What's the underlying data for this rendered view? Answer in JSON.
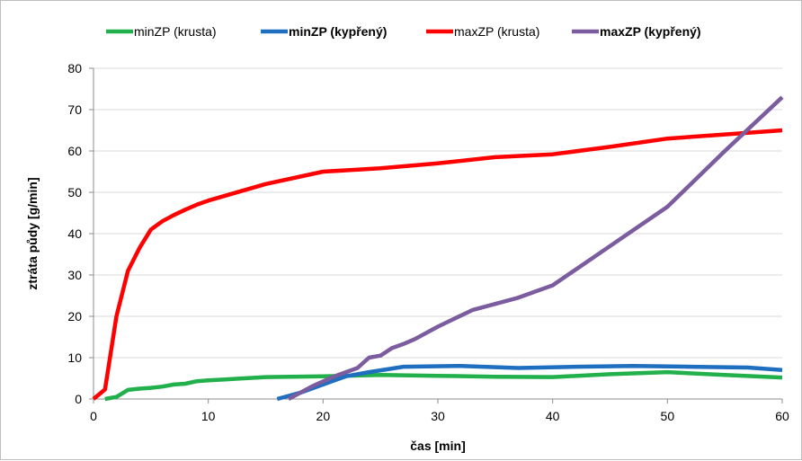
{
  "chart_data": {
    "type": "line",
    "xlabel": "čas [min]",
    "ylabel": "ztráta půdy [g/min]",
    "xlim": [
      0,
      60
    ],
    "ylim": [
      0,
      80
    ],
    "xticks": [
      0,
      10,
      20,
      30,
      40,
      50,
      60
    ],
    "yticks": [
      0,
      10,
      20,
      30,
      40,
      50,
      60,
      70,
      80
    ],
    "grid": "horizontal",
    "legend": "top",
    "series": [
      {
        "name": "minZP (krusta)",
        "color": "#21b04b",
        "bold": false,
        "x": [
          1,
          2,
          3,
          4,
          5,
          6,
          7,
          8,
          9,
          10,
          15,
          20,
          25,
          30,
          35,
          40,
          45,
          50,
          55,
          60
        ],
        "y": [
          0,
          0.5,
          2.2,
          2.5,
          2.7,
          3.0,
          3.5,
          3.7,
          4.3,
          4.5,
          5.3,
          5.5,
          5.8,
          5.6,
          5.4,
          5.3,
          6.0,
          6.5,
          5.8,
          5.2
        ]
      },
      {
        "name": "minZP (kypřený)",
        "color": "#1f6fc0",
        "bold": true,
        "x": [
          16,
          18,
          20,
          22,
          24,
          27,
          32,
          37,
          42,
          47,
          52,
          57,
          60
        ],
        "y": [
          0,
          1.5,
          3.5,
          5.5,
          6.5,
          7.8,
          8.0,
          7.5,
          7.8,
          8.0,
          7.8,
          7.6,
          7.0
        ]
      },
      {
        "name": "maxZP (krusta)",
        "color": "#ff0000",
        "bold": false,
        "x": [
          0,
          1,
          2,
          3,
          4,
          5,
          6,
          7,
          8,
          9,
          10,
          15,
          20,
          25,
          30,
          35,
          40,
          45,
          50,
          55,
          60
        ],
        "y": [
          0,
          2.3,
          20,
          31,
          36.5,
          41,
          43,
          44.5,
          45.8,
          47,
          48,
          52,
          55,
          55.8,
          57,
          58.5,
          59.2,
          61,
          63,
          64,
          65
        ]
      },
      {
        "name": "maxZP (kypřený)",
        "color": "#7a5c9f",
        "bold": true,
        "x": [
          17,
          19,
          21,
          23,
          24,
          25,
          26,
          27,
          28,
          30,
          33,
          37,
          40,
          45,
          50,
          55,
          60
        ],
        "y": [
          0,
          3,
          5.5,
          7.5,
          10,
          10.5,
          12.3,
          13.3,
          14.5,
          17.5,
          21.5,
          24.5,
          27.5,
          37,
          46.5,
          60,
          73
        ]
      }
    ]
  }
}
